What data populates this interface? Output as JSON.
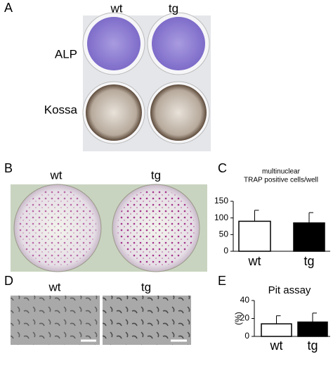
{
  "panels": {
    "A": {
      "label": "A",
      "columns": [
        "wt",
        "tg"
      ],
      "rows": [
        "ALP",
        "Kossa"
      ]
    },
    "B": {
      "label": "B",
      "columns": [
        "wt",
        "tg"
      ]
    },
    "C": {
      "label": "C"
    },
    "D": {
      "label": "D",
      "columns": [
        "wt",
        "tg"
      ]
    },
    "E": {
      "label": "E"
    }
  },
  "chart_data": [
    {
      "type": "bar",
      "title": [
        "multinuclear",
        "TRAP positive cells/well"
      ],
      "categories": [
        "wt",
        "tg"
      ],
      "values": [
        90,
        85
      ],
      "errors": [
        33,
        31
      ],
      "colors": [
        "#ffffff",
        "#000000"
      ],
      "ylim": [
        0,
        150
      ],
      "yticks": [
        0,
        50,
        100,
        150
      ]
    },
    {
      "type": "bar",
      "title": "Pit assay",
      "ylabel": "(%)",
      "categories": [
        "wt",
        "tg"
      ],
      "values": [
        14,
        16
      ],
      "errors": [
        9,
        10
      ],
      "colors": [
        "#ffffff",
        "#000000"
      ],
      "ylim": [
        0,
        40
      ],
      "yticks": [
        0,
        20,
        40
      ]
    }
  ]
}
